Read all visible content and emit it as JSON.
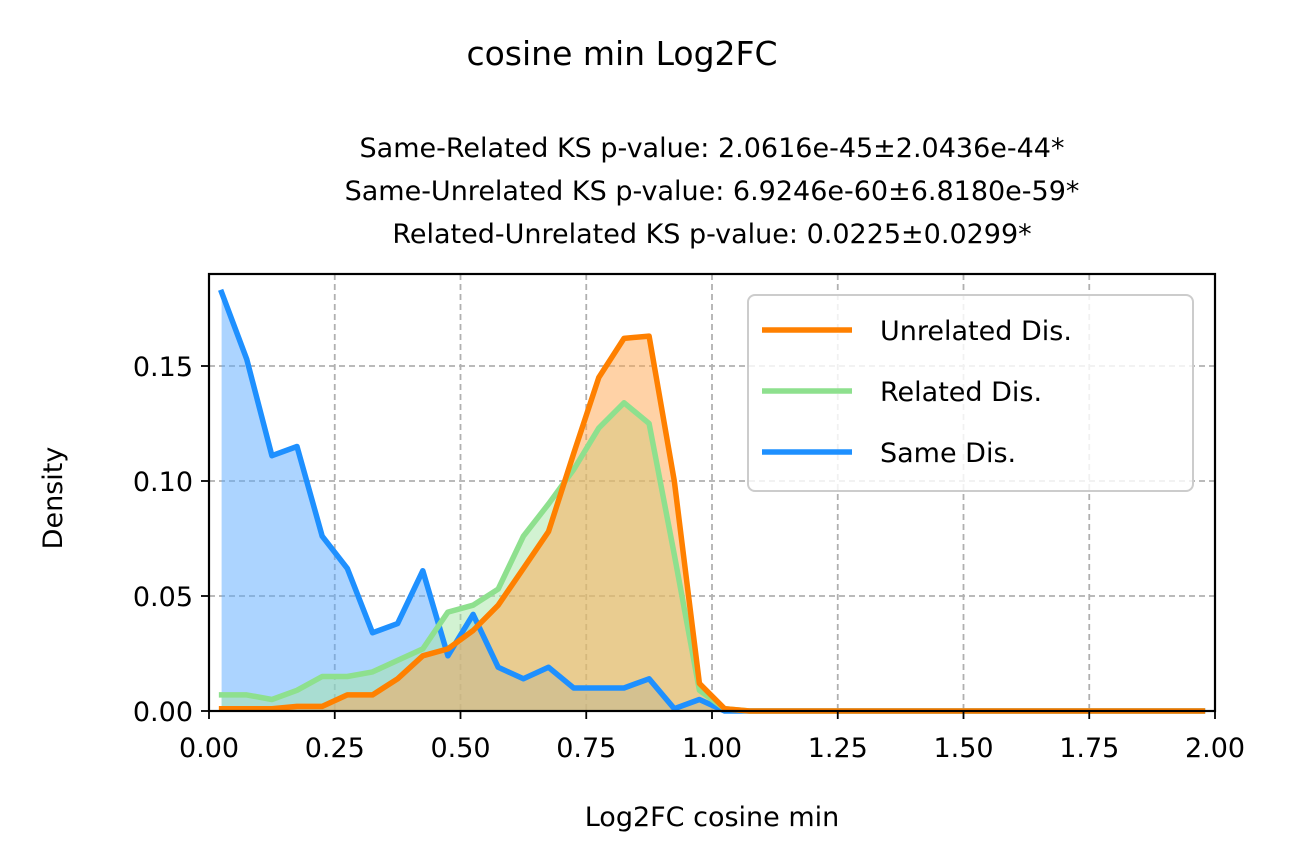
{
  "chart_data": {
    "type": "area",
    "title": "cosine min Log2FC",
    "subtitle_lines": [
      "Same-Related KS p-value: 2.0616e-45±2.0436e-44*",
      "Same-Unrelated KS p-value: 6.9246e-60±6.8180e-59*",
      "Related-Unrelated KS p-value: 0.0225±0.0299*"
    ],
    "xlabel": "Log2FC cosine min",
    "ylabel": "Density",
    "xlim": [
      0,
      2
    ],
    "ylim": [
      0,
      0.19
    ],
    "xticks": [
      0,
      0.25,
      0.5,
      0.75,
      1.0,
      1.25,
      1.5,
      1.75,
      2.0
    ],
    "xtick_labels": [
      "0.00",
      "0.25",
      "0.50",
      "0.75",
      "1.00",
      "1.25",
      "1.50",
      "1.75",
      "2.00"
    ],
    "yticks": [
      0,
      0.05,
      0.1,
      0.15
    ],
    "ytick_labels": [
      "0.00",
      "0.05",
      "0.10",
      "0.15"
    ],
    "grid": true,
    "legend_position": "top-right",
    "x": [
      0.025,
      0.075,
      0.125,
      0.175,
      0.225,
      0.275,
      0.325,
      0.375,
      0.425,
      0.475,
      0.525,
      0.575,
      0.625,
      0.675,
      0.725,
      0.775,
      0.825,
      0.875,
      0.925,
      0.975,
      1.025,
      1.075,
      1.125,
      1.175,
      1.225,
      1.275,
      1.325,
      1.375,
      1.425,
      1.475,
      1.525,
      1.575,
      1.625,
      1.675,
      1.725,
      1.775,
      1.825,
      1.875,
      1.925,
      1.975
    ],
    "series": [
      {
        "name": "Unrelated Dis.",
        "line_color": "#ff8000",
        "fill_color": "#ffa64d",
        "values": [
          0.001,
          0.001,
          0.001,
          0.002,
          0.002,
          0.007,
          0.007,
          0.014,
          0.024,
          0.027,
          0.035,
          0.046,
          0.062,
          0.078,
          0.112,
          0.145,
          0.162,
          0.163,
          0.1,
          0.012,
          0.001,
          0,
          0,
          0,
          0,
          0,
          0,
          0,
          0,
          0,
          0,
          0,
          0,
          0,
          0,
          0,
          0,
          0,
          0,
          0
        ]
      },
      {
        "name": "Related Dis.",
        "line_color": "#8ee08e",
        "fill_color": "#a6e6a6",
        "values": [
          0.007,
          0.007,
          0.005,
          0.009,
          0.015,
          0.015,
          0.017,
          0.022,
          0.027,
          0.043,
          0.046,
          0.053,
          0.076,
          0.09,
          0.105,
          0.123,
          0.134,
          0.125,
          0.068,
          0.009,
          0.001,
          0,
          0,
          0,
          0,
          0,
          0,
          0,
          0,
          0,
          0,
          0,
          0,
          0,
          0,
          0,
          0,
          0,
          0,
          0
        ]
      },
      {
        "name": "Same Dis.",
        "line_color": "#1e90ff",
        "fill_color": "#5aaaff",
        "values": [
          0.182,
          0.153,
          0.111,
          0.115,
          0.076,
          0.062,
          0.034,
          0.038,
          0.061,
          0.024,
          0.042,
          0.019,
          0.014,
          0.019,
          0.01,
          0.01,
          0.01,
          0.014,
          0.001,
          0.005,
          0,
          0,
          0,
          0,
          0,
          0,
          0,
          0,
          0,
          0,
          0,
          0,
          0,
          0,
          0,
          0,
          0,
          0,
          0,
          0
        ]
      }
    ]
  }
}
